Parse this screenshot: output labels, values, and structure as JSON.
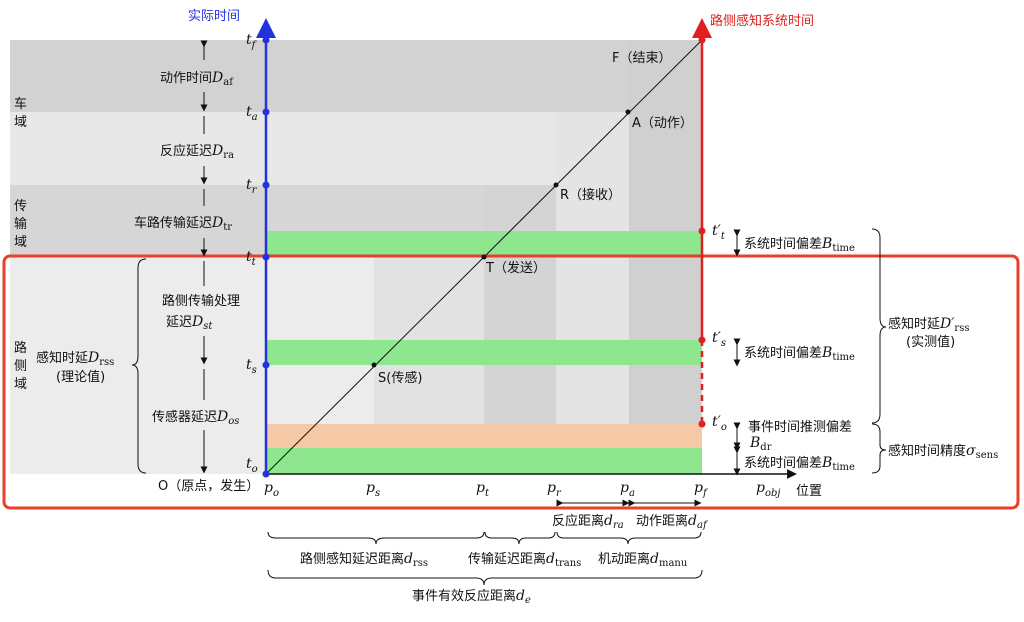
{
  "axes": {
    "actual_time": "实际时间",
    "roadside_time": "路侧感知系统时间",
    "position": "位置"
  },
  "domains": {
    "vehicle": [
      "车",
      "域"
    ],
    "transmission": [
      "传",
      "输",
      "域"
    ],
    "roadside": [
      "路",
      "侧",
      "域"
    ]
  },
  "left_ticks": [
    {
      "base": "t",
      "sub": "f"
    },
    {
      "base": "t",
      "sub": "a"
    },
    {
      "base": "t",
      "sub": "r"
    },
    {
      "base": "t",
      "sub": "t"
    },
    {
      "base": "t",
      "sub": "s"
    },
    {
      "base": "t",
      "sub": "o"
    }
  ],
  "right_ticks": [
    {
      "base": "t′",
      "sub": "t"
    },
    {
      "base": "t′",
      "sub": "s"
    },
    {
      "base": "t′",
      "sub": "o"
    }
  ],
  "bottom_ticks": [
    {
      "base": "p",
      "sub": "o"
    },
    {
      "base": "p",
      "sub": "s"
    },
    {
      "base": "p",
      "sub": "t"
    },
    {
      "base": "p",
      "sub": "r"
    },
    {
      "base": "p",
      "sub": "a"
    },
    {
      "base": "p",
      "sub": "f"
    },
    {
      "base": "p",
      "sub": "obj"
    }
  ],
  "points": {
    "F": "F（结束）",
    "A": "A（动作）",
    "R": "R（接收）",
    "T": "T（发送）",
    "S": "S(传感)",
    "O": "O（原点，发生）"
  },
  "left_intervals": {
    "action": {
      "text": "动作时间",
      "sym": "D",
      "sub": "af"
    },
    "reaction": {
      "text": "反应延迟",
      "sym": "D",
      "sub": "ra"
    },
    "transfer": {
      "text": "车路传输延迟",
      "sym": "D",
      "sub": "tr"
    },
    "processing_1": "路侧传输处理",
    "processing_2": {
      "text": "延迟",
      "sym": "D",
      "sub": "st"
    },
    "sensor": {
      "text": "传感器延迟",
      "sym": "D",
      "sub": "os"
    },
    "theory_1": {
      "text": "感知时延",
      "sym": "D",
      "sub": "rss"
    },
    "theory_2": "(理论值)"
  },
  "right_labels": {
    "bias_1": {
      "text": "系统时间偏差",
      "sym": "B",
      "sub": "time"
    },
    "bias_2": {
      "text": "系统时间偏差",
      "sym": "B",
      "sub": "time"
    },
    "bias_3": {
      "text": "系统时间偏差",
      "sym": "B",
      "sub": "time"
    },
    "event_est_1": "事件时间推测偏差",
    "event_est_2": {
      "sym": "B",
      "sub": "dr"
    },
    "measured_1": {
      "text": "感知时延",
      "sym": "D′",
      "sub": "rss"
    },
    "measured_2": "(实测值)",
    "accuracy": {
      "text": "感知时间精度",
      "sym": "σ",
      "sub": "sens"
    }
  },
  "bottom_labels": {
    "reaction_dist": {
      "text": "反应距离",
      "sym": "d",
      "sub": "ra"
    },
    "action_dist": {
      "text": "动作距离",
      "sym": "d",
      "sub": "af"
    },
    "roadside_dist": {
      "text": "路侧感知延迟距离",
      "sym": "d",
      "sub": "rss"
    },
    "trans_dist": {
      "text": "传输延迟距离",
      "sym": "d",
      "sub": "trans"
    },
    "manu_dist": {
      "text": "机动距离",
      "sym": "d",
      "sub": "manu"
    },
    "effective_dist": {
      "text": "事件有效反应距离",
      "sym": "d",
      "sub": "e"
    }
  },
  "colors": {
    "blue_axis": "#2233dd",
    "red_axis": "#e02020",
    "highlight_box": "#e8402a",
    "green_band": "#8ee68e",
    "orange_band": "#f5c9a6"
  }
}
